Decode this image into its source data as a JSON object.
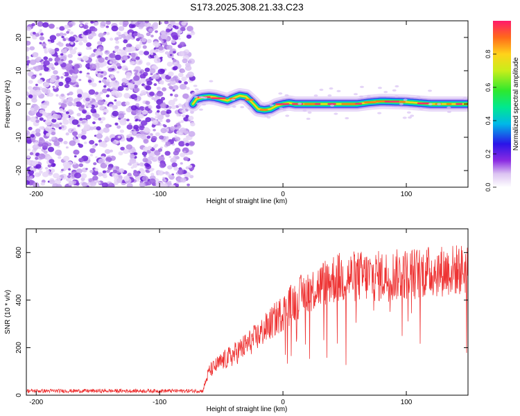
{
  "title": "S173.2025.308.21.33.C23",
  "chart_data": [
    {
      "type": "heatmap",
      "xlabel": "Height of straight line (km)",
      "ylabel": "Frequency (Hz)",
      "xlim": [
        -208,
        150
      ],
      "ylim": [
        -25,
        25
      ],
      "xticks": [
        -200,
        -100,
        0,
        100
      ],
      "yticks": [
        -20,
        -10,
        0,
        10,
        20
      ],
      "noise_region_x": [
        -208,
        -73
      ],
      "ridge": {
        "x": [
          -73,
          -70,
          -65,
          -60,
          -55,
          -50,
          -45,
          -40,
          -35,
          -30,
          -25,
          -20,
          -15,
          -10,
          -5,
          0,
          5,
          10,
          20,
          30,
          40,
          50,
          60,
          70,
          80,
          90,
          100,
          110,
          120,
          130,
          140,
          150
        ],
        "freq": [
          0,
          1.5,
          2,
          2.2,
          2,
          1.5,
          1,
          1.8,
          2.5,
          2.2,
          0.5,
          -1.5,
          -1.8,
          -1.5,
          -0.5,
          0,
          0.3,
          0,
          0,
          0,
          0,
          0,
          0,
          0.5,
          0.8,
          0.7,
          0.6,
          0.3,
          0,
          0,
          0,
          0
        ]
      },
      "colorbar": {
        "label": "Normalized spectral amplitude",
        "ticks": [
          "0.0",
          "0.2",
          "0.4",
          "0.6",
          "0.8"
        ]
      }
    },
    {
      "type": "line",
      "xlabel": "Height of straight line (km)",
      "ylabel": "SNR (10 * v/v)",
      "xlim": [
        -208,
        150
      ],
      "ylim": [
        0,
        700
      ],
      "xticks": [
        -200,
        -100,
        0,
        100
      ],
      "yticks": [
        0,
        200,
        400,
        600
      ],
      "series": [
        {
          "name": "SNR",
          "color": "#ee3333",
          "trend_x": [
            -208,
            -65,
            -60,
            -50,
            -40,
            -30,
            -20,
            -10,
            0,
            10,
            20,
            30,
            40,
            60,
            80,
            100,
            120,
            150
          ],
          "trend_base": [
            18,
            18,
            100,
            140,
            170,
            210,
            250,
            300,
            350,
            400,
            440,
            460,
            490,
            500,
            500,
            510,
            520,
            530
          ],
          "trend_noise": [
            8,
            8,
            30,
            40,
            50,
            55,
            60,
            70,
            80,
            90,
            90,
            100,
            110,
            110,
            110,
            110,
            110,
            110
          ]
        }
      ]
    }
  ]
}
